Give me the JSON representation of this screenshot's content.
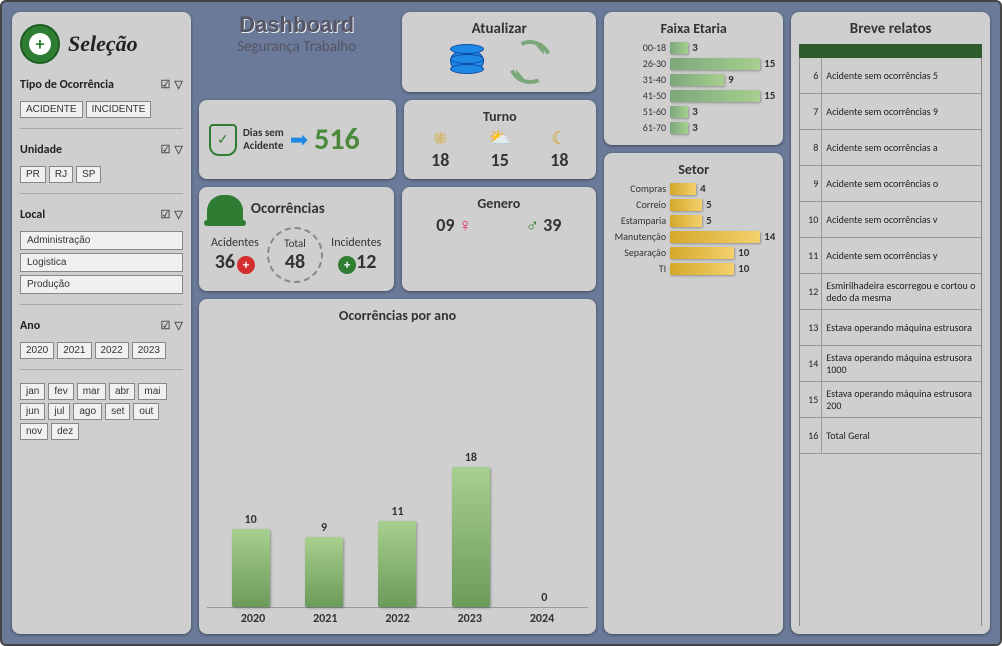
{
  "selection": {
    "title": "Seleção",
    "tipo_label": "Tipo de Ocorrência",
    "tipo_buttons": [
      "ACIDENTE",
      "INCIDENTE"
    ],
    "unidade_label": "Unidade",
    "unidade_buttons": [
      "PR",
      "RJ",
      "SP"
    ],
    "local_label": "Local",
    "local_buttons": [
      "Administração",
      "Logistica",
      "Produção"
    ],
    "ano_label": "Ano",
    "ano_buttons": [
      "2020",
      "2021",
      "2022",
      "2023"
    ],
    "months": [
      "jan",
      "fev",
      "mar",
      "abr",
      "mai",
      "jun",
      "jul",
      "ago",
      "set",
      "out",
      "nov",
      "dez"
    ]
  },
  "header": {
    "title": "Dashboard",
    "subtitle": "Segurança Trabalho"
  },
  "update": {
    "title": "Atualizar"
  },
  "days": {
    "label1": "Dias sem",
    "label2": "Acidente",
    "value": "516"
  },
  "turno": {
    "title": "Turno",
    "items": [
      {
        "icon": "☀",
        "value": "18"
      },
      {
        "icon": "⛅",
        "value": "15"
      },
      {
        "icon": "☾",
        "value": "18"
      }
    ]
  },
  "occ": {
    "title": "Ocorrências",
    "acidentes_label": "Acidentes",
    "acidentes": "36",
    "incidentes_label": "Incidentes",
    "incidentes": "12",
    "total_label": "Total",
    "total": "48"
  },
  "genero": {
    "title": "Genero",
    "f": "09",
    "m": "39"
  },
  "yearchart": {
    "title": "Ocorrências por ano",
    "max": 18,
    "bars": [
      {
        "cat": "2020",
        "val": 10
      },
      {
        "cat": "2021",
        "val": 9
      },
      {
        "cat": "2022",
        "val": 11
      },
      {
        "cat": "2023",
        "val": 18
      },
      {
        "cat": "2024",
        "val": 0
      }
    ]
  },
  "age": {
    "title": "Faixa Etaria",
    "max": 15,
    "bars": [
      {
        "cat": "00-18",
        "val": 3
      },
      {
        "cat": "26-30",
        "val": 15
      },
      {
        "cat": "31-40",
        "val": 9
      },
      {
        "cat": "41-50",
        "val": 15
      },
      {
        "cat": "51-60",
        "val": 3
      },
      {
        "cat": "61-70",
        "val": 3
      }
    ]
  },
  "setor": {
    "title": "Setor",
    "max": 14,
    "bars": [
      {
        "cat": "Compras",
        "val": 4
      },
      {
        "cat": "Correio",
        "val": 5
      },
      {
        "cat": "Estamparia",
        "val": 5
      },
      {
        "cat": "Manutenção",
        "val": 14
      },
      {
        "cat": "Separação",
        "val": 10
      },
      {
        "cat": "TI",
        "val": 10
      }
    ]
  },
  "reports": {
    "title": "Breve relatos",
    "rows": [
      {
        "n": 6,
        "t": "Acidente sem ocorrências 5"
      },
      {
        "n": 7,
        "t": "Acidente sem ocorrências 9"
      },
      {
        "n": 8,
        "t": "Acidente sem ocorrências a"
      },
      {
        "n": 9,
        "t": "Acidente sem ocorrências o"
      },
      {
        "n": 10,
        "t": "Acidente sem ocorrências v"
      },
      {
        "n": 11,
        "t": "Acidente sem ocorrências y"
      },
      {
        "n": 12,
        "t": "Esmirilhadeira escorregou e cortou o dedo da mesma"
      },
      {
        "n": 13,
        "t": "Estava operando máquina estrusora"
      },
      {
        "n": 14,
        "t": "Estava operando máquina estrusora 1000"
      },
      {
        "n": 15,
        "t": "Estava operando máquina estrusora 200"
      },
      {
        "n": 16,
        "t": "Total Geral"
      }
    ]
  }
}
